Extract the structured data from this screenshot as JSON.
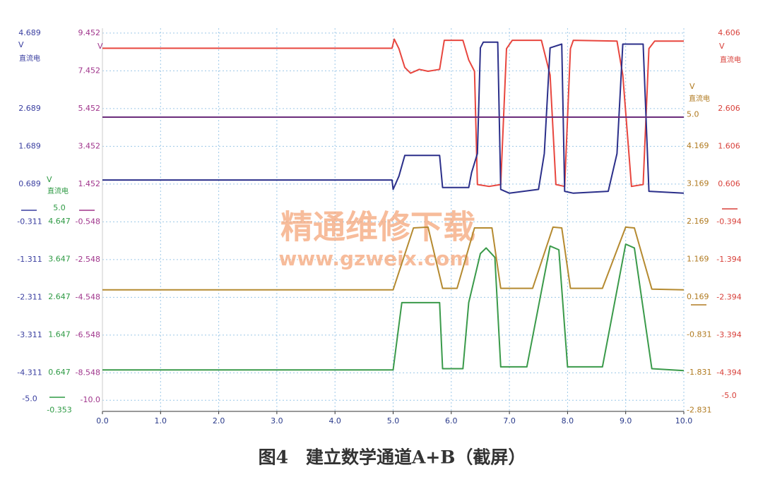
{
  "chart_data": {
    "type": "line",
    "xlim": [
      0,
      10
    ],
    "xticks": [
      {
        "value": 0,
        "label": "0.0"
      },
      {
        "value": 1,
        "label": "1.0"
      },
      {
        "value": 2,
        "label": "2.0"
      },
      {
        "value": 3,
        "label": "3.0"
      },
      {
        "value": 4,
        "label": "4.0"
      },
      {
        "value": 5,
        "label": "5.0"
      },
      {
        "value": 6,
        "label": "6.0"
      },
      {
        "value": 7,
        "label": "7.0"
      },
      {
        "value": 8,
        "label": "8.0"
      },
      {
        "value": 9,
        "label": "9.0"
      },
      {
        "value": 10,
        "label": "10.0"
      }
    ],
    "grid": true,
    "y_axes": [
      {
        "color": "#3a3fa0",
        "unit": "V",
        "label": "直流电",
        "ylim": [
          -5.33,
          4.82
        ],
        "yticks": [
          4.689,
          2.689,
          1.689,
          0.689,
          -0.311,
          -1.311,
          -2.311,
          -3.311,
          -4.311,
          {
            "value": -5,
            "label": "-5.0"
          }
        ]
      },
      {
        "color": "#a0358c",
        "unit": "V",
        "ylim": [
          -10.59,
          9.71
        ],
        "yticks": [
          9.452,
          7.452,
          5.452,
          3.452,
          1.452,
          -0.548,
          -2.548,
          -4.548,
          -6.548,
          -8.548,
          {
            "value": -10,
            "label": "-10.0"
          }
        ]
      },
      {
        "color": "#2e9a44",
        "unit": "V",
        "label": "直流电",
        "ylim": [
          -0.38,
          9.77
        ],
        "yticks": [
          {
            "value": 5,
            "label": "5.0"
          },
          4.647,
          3.647,
          2.647,
          1.647,
          0.647,
          -0.353
        ]
      },
      {
        "color": "#b07a20",
        "unit": "V",
        "label": "直流电",
        "ylim": [
          -2.86,
          7.29
        ],
        "yticks": [
          {
            "value": 5,
            "label": "5.0"
          },
          4.169,
          3.169,
          2.169,
          1.169,
          0.169,
          -0.831,
          -1.831,
          -2.831
        ]
      },
      {
        "color": "#d8403a",
        "unit": "V",
        "label": "直流电",
        "ylim": [
          -5.41,
          4.74
        ],
        "yticks": [
          4.606,
          2.606,
          1.606,
          0.606,
          -0.394,
          -1.394,
          -2.394,
          -3.394,
          -4.394,
          {
            "value": -5,
            "label": "-5.0"
          }
        ]
      }
    ],
    "series": [
      {
        "color": "#e8463e",
        "axis": 4,
        "x": [
          0,
          4.98,
          5.02,
          5.1,
          5.2,
          5.3,
          5.45,
          5.6,
          5.8,
          5.88,
          6.2,
          6.3,
          6.4,
          6.45,
          6.65,
          6.85,
          6.95,
          7.05,
          7.55,
          7.7,
          7.8,
          7.95,
          8.05,
          8.1,
          8.85,
          8.95,
          9.1,
          9.3,
          9.4,
          9.5,
          10
        ],
        "values": [
          4.21,
          4.21,
          4.45,
          4.2,
          3.7,
          3.55,
          3.65,
          3.6,
          3.65,
          4.42,
          4.42,
          3.9,
          3.6,
          0.6,
          0.55,
          0.6,
          4.2,
          4.42,
          4.42,
          3.5,
          0.6,
          0.55,
          4.2,
          4.42,
          4.4,
          3.5,
          0.55,
          0.6,
          4.2,
          4.4,
          4.4
        ]
      },
      {
        "color": "#2b2f8a",
        "axis": 0,
        "x": [
          0,
          4.98,
          5.0,
          5.1,
          5.2,
          5.8,
          5.85,
          6.3,
          6.35,
          6.45,
          6.5,
          6.55,
          6.8,
          6.85,
          7.0,
          7.5,
          7.6,
          7.7,
          7.9,
          7.95,
          8.1,
          8.7,
          8.85,
          8.95,
          9.3,
          9.4,
          10
        ],
        "values": [
          0.8,
          0.8,
          0.55,
          0.9,
          1.45,
          1.45,
          0.6,
          0.6,
          1.0,
          1.5,
          4.3,
          4.45,
          4.45,
          0.55,
          0.45,
          0.55,
          1.5,
          4.3,
          4.4,
          0.5,
          0.45,
          0.5,
          1.5,
          4.4,
          4.4,
          0.5,
          0.45
        ]
      },
      {
        "color": "#6a2c7a",
        "axis": 1,
        "x": [
          0,
          10
        ],
        "values": [
          5,
          5
        ]
      },
      {
        "color": "#b58a30",
        "axis": 3,
        "x": [
          0,
          5.0,
          5.35,
          5.6,
          5.85,
          6.1,
          6.4,
          6.7,
          6.85,
          7.4,
          7.75,
          7.9,
          8.05,
          8.6,
          9.0,
          9.15,
          9.45,
          10
        ],
        "values": [
          0.36,
          0.36,
          2.0,
          2.02,
          0.4,
          0.4,
          2.0,
          2.0,
          0.4,
          0.4,
          2.02,
          2.0,
          0.4,
          0.4,
          2.02,
          2.0,
          0.38,
          0.36
        ]
      },
      {
        "color": "#3a9a4a",
        "axis": 2,
        "x": [
          0,
          5.0,
          5.15,
          5.8,
          5.85,
          6.2,
          6.3,
          6.5,
          6.6,
          6.75,
          6.85,
          7.3,
          7.7,
          7.85,
          8.0,
          8.6,
          9.0,
          9.15,
          9.45,
          10
        ],
        "values": [
          0.72,
          0.72,
          2.5,
          2.5,
          0.75,
          0.75,
          2.5,
          3.8,
          3.95,
          3.7,
          0.8,
          0.8,
          4.0,
          3.9,
          0.8,
          0.8,
          4.05,
          3.95,
          0.75,
          0.7
        ]
      }
    ]
  },
  "watermark": {
    "title": "精通维修下载",
    "url": "www.gzweix.com"
  },
  "caption": "图4　建立数学通道A+B（截屏）"
}
